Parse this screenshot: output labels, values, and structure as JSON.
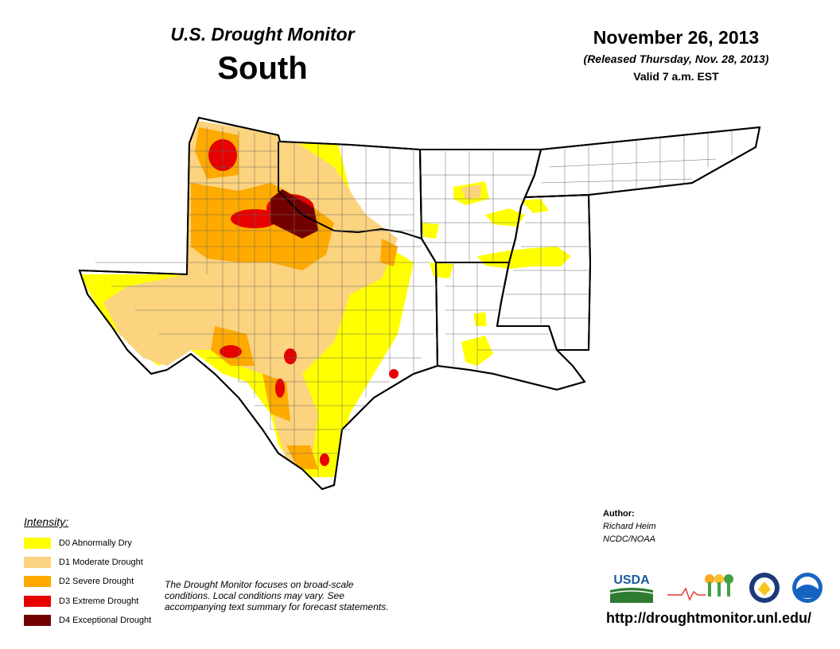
{
  "header": {
    "title": "U.S. Drought Monitor",
    "region": "South",
    "date": "November 26, 2013",
    "released": "(Released Thursday, Nov. 28, 2013)",
    "valid": "Valid 7 a.m. EST"
  },
  "legend": {
    "title": "Intensity:",
    "items": [
      {
        "label": "D0 Abnormally Dry",
        "color": "#ffff00"
      },
      {
        "label": "D1 Moderate Drought",
        "color": "#fcd37f"
      },
      {
        "label": "D2 Severe Drought",
        "color": "#ffaa00"
      },
      {
        "label": "D3 Extreme Drought",
        "color": "#e60000"
      },
      {
        "label": "D4 Exceptional Drought",
        "color": "#730000"
      }
    ]
  },
  "note": "The Drought Monitor focuses on broad-scale conditions. Local conditions may vary. See accompanying text summary for forecast statements.",
  "author": {
    "label": "Author:",
    "name": "Richard Heim",
    "org": "NCDC/NOAA"
  },
  "logos": {
    "usda": "USDA",
    "ndmc": "National Drought Mitigation Center"
  },
  "url": "http://droughtmonitor.unl.edu/"
}
